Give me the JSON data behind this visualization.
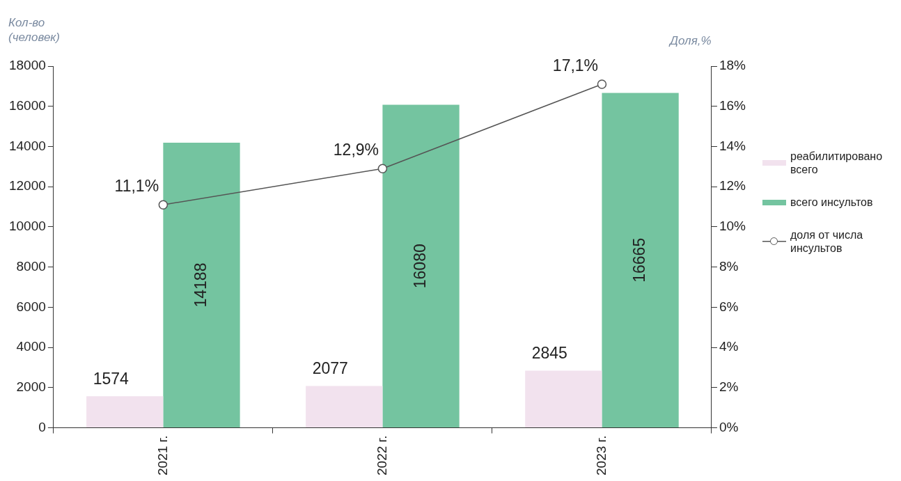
{
  "chart_data": {
    "type": "bar",
    "ylabel": "Кол-во (человек)",
    "y2label": "Доля,%",
    "categories": [
      "2021 г.",
      "2022 г.",
      "2023 г."
    ],
    "series": [
      {
        "name": "реабилитировано всего",
        "color": "#f2e2ee",
        "values": [
          1574,
          2077,
          2845
        ],
        "value_labels": [
          "1574",
          "2077",
          "2845"
        ]
      },
      {
        "name": "всего инсультов",
        "color": "#74c4a0",
        "values": [
          14188,
          16080,
          16665
        ],
        "value_labels": [
          "14188",
          "16080",
          "16665"
        ]
      },
      {
        "name": "доля от числа инсультов",
        "type": "line",
        "axis": "y2",
        "color": "#555555",
        "values": [
          11.1,
          12.9,
          17.1
        ],
        "value_labels": [
          "11,1%",
          "12,9%",
          "17,1%"
        ]
      }
    ],
    "ylim": [
      0,
      18000
    ],
    "yticks": [
      0,
      2000,
      4000,
      6000,
      8000,
      10000,
      12000,
      14000,
      16000,
      18000
    ],
    "y2lim": [
      0,
      18
    ],
    "y2ticks": [
      {
        "value": 0,
        "label": "0%"
      },
      {
        "value": 2,
        "label": "2%"
      },
      {
        "value": 4,
        "label": "4%"
      },
      {
        "value": 6,
        "label": "6%"
      },
      {
        "value": 8,
        "label": "8%"
      },
      {
        "value": 10,
        "label": "10%"
      },
      {
        "value": 12,
        "label": "12%"
      },
      {
        "value": 14,
        "label": "14%"
      },
      {
        "value": 16,
        "label": "16%"
      },
      {
        "value": 18,
        "label": "18%"
      }
    ],
    "marker": "circle",
    "grid": false,
    "legend": "right"
  }
}
